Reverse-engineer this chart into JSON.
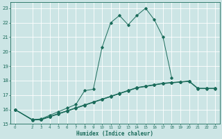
{
  "xlabel": "Humidex (Indice chaleur)",
  "bg_color": "#cce5e5",
  "line_color": "#1a6b5a",
  "grid_color": "#ffffff",
  "xlim": [
    -0.5,
    23.5
  ],
  "ylim": [
    15,
    23.4
  ],
  "yticks": [
    15,
    16,
    17,
    18,
    19,
    20,
    21,
    22,
    23
  ],
  "xticks": [
    0,
    2,
    3,
    4,
    5,
    6,
    7,
    8,
    9,
    10,
    11,
    12,
    13,
    14,
    15,
    16,
    17,
    18,
    19,
    20,
    21,
    22,
    23
  ],
  "peaked_x": [
    0,
    2,
    3,
    4,
    5,
    6,
    7,
    8,
    9,
    10,
    11,
    12,
    13,
    14,
    15,
    16,
    17,
    18
  ],
  "peaked_y": [
    16.0,
    15.3,
    15.35,
    15.6,
    15.85,
    16.1,
    16.35,
    17.3,
    17.4,
    20.3,
    22.0,
    22.5,
    21.85,
    22.5,
    23.0,
    22.2,
    21.0,
    18.2
  ],
  "flat1_x": [
    0,
    2,
    3,
    4,
    5,
    6,
    7,
    8,
    9,
    10,
    11,
    12,
    13,
    14,
    15,
    16,
    17,
    18,
    19,
    20,
    21,
    22,
    23
  ],
  "flat1_y": [
    16.0,
    15.3,
    15.32,
    15.52,
    15.72,
    15.92,
    16.12,
    16.32,
    16.52,
    16.72,
    16.92,
    17.12,
    17.32,
    17.52,
    17.62,
    17.72,
    17.82,
    17.87,
    17.92,
    17.97,
    17.47,
    17.47,
    17.47
  ],
  "flat2_x": [
    0,
    2,
    3,
    4,
    5,
    6,
    7,
    8,
    9,
    10,
    11,
    12,
    13,
    14,
    15,
    16,
    17,
    18,
    19,
    20,
    21,
    22,
    23
  ],
  "flat2_y": [
    16.0,
    15.28,
    15.3,
    15.5,
    15.7,
    15.9,
    16.1,
    16.3,
    16.5,
    16.7,
    16.9,
    17.1,
    17.3,
    17.5,
    17.6,
    17.7,
    17.8,
    17.85,
    17.9,
    17.95,
    17.45,
    17.45,
    17.45
  ],
  "flat3_x": [
    0,
    2,
    3,
    4,
    5,
    6,
    7,
    8,
    9,
    10,
    11,
    12,
    13,
    14,
    15,
    16,
    17,
    18,
    19,
    20,
    21,
    22,
    23
  ],
  "flat3_y": [
    16.0,
    15.27,
    15.29,
    15.49,
    15.69,
    15.89,
    16.09,
    16.29,
    16.49,
    16.69,
    16.89,
    17.09,
    17.29,
    17.49,
    17.59,
    17.69,
    17.79,
    17.84,
    17.89,
    17.94,
    17.44,
    17.44,
    17.44
  ]
}
